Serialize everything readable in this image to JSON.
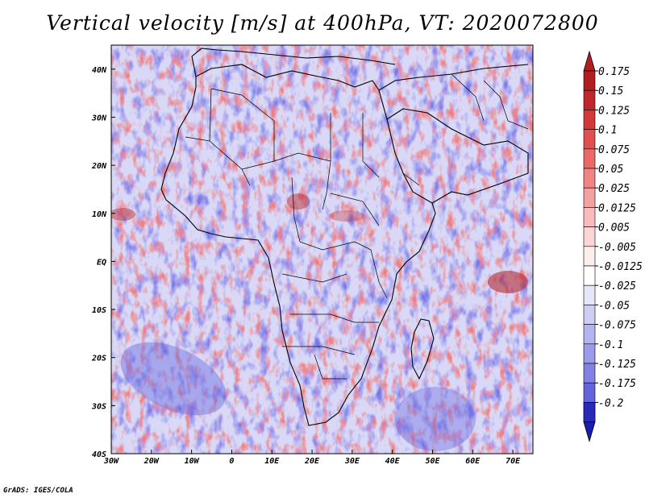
{
  "title": "Vertical velocity [m/s] at 400hPa, VT: 2020072800",
  "credit": "GrADS: IGES/COLA",
  "map": {
    "lon_range": [
      -30,
      75
    ],
    "lat_range": [
      -40,
      45
    ],
    "lon_ticks": [
      {
        "value": -30,
        "label": "30W"
      },
      {
        "value": -20,
        "label": "20W"
      },
      {
        "value": -10,
        "label": "10W"
      },
      {
        "value": 0,
        "label": "0"
      },
      {
        "value": 10,
        "label": "10E"
      },
      {
        "value": 20,
        "label": "20E"
      },
      {
        "value": 30,
        "label": "30E"
      },
      {
        "value": 40,
        "label": "40E"
      },
      {
        "value": 50,
        "label": "50E"
      },
      {
        "value": 60,
        "label": "60E"
      },
      {
        "value": 70,
        "label": "70E"
      }
    ],
    "lat_ticks": [
      {
        "value": 40,
        "label": "40N"
      },
      {
        "value": 30,
        "label": "30N"
      },
      {
        "value": 20,
        "label": "20N"
      },
      {
        "value": 10,
        "label": "10N"
      },
      {
        "value": 0,
        "label": "EQ"
      },
      {
        "value": -10,
        "label": "10S"
      },
      {
        "value": -20,
        "label": "20S"
      },
      {
        "value": -30,
        "label": "30S"
      },
      {
        "value": -40,
        "label": "40S"
      }
    ]
  },
  "colorbar": {
    "levels": [
      {
        "label": "0.175",
        "color": "#c0272d"
      },
      {
        "label": "0.15",
        "color": "#d23a3a"
      },
      {
        "label": "0.125",
        "color": "#e05050"
      },
      {
        "label": "0.1",
        "color": "#ea6a6a"
      },
      {
        "label": "0.075",
        "color": "#f08585"
      },
      {
        "label": "0.05",
        "color": "#f4a1a1"
      },
      {
        "label": "0.025",
        "color": "#f8bcbc"
      },
      {
        "label": "0.0125",
        "color": "#fbd6d6"
      },
      {
        "label": "0.005",
        "color": "#fdeeee"
      },
      {
        "label": "-0.005",
        "color": "#ffffff"
      },
      {
        "label": "-0.0125",
        "color": "#e6e6fb"
      },
      {
        "label": "-0.025",
        "color": "#cdcdf6"
      },
      {
        "label": "-0.05",
        "color": "#b4b4f1"
      },
      {
        "label": "-0.075",
        "color": "#9b9bec"
      },
      {
        "label": "-0.1",
        "color": "#8282e4"
      },
      {
        "label": "-0.125",
        "color": "#6464dc"
      },
      {
        "label": "-0.175",
        "color": "#4646d0"
      },
      {
        "label": "-0.2",
        "color": "#2a2ab8"
      }
    ],
    "top_color": "#b01e22",
    "bottom_color": "#1c1caa"
  }
}
